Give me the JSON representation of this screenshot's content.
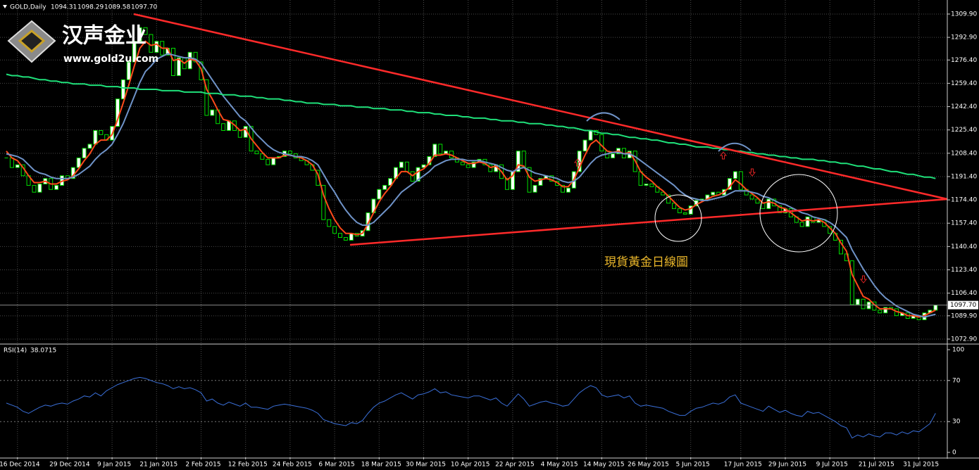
{
  "logo": {
    "name": "汉声金业",
    "url": "www.gold2u.com"
  },
  "chart_data": {
    "type": "candlestick",
    "symbol": "GOLD,Daily",
    "header_ohlc": [
      1094.31,
      1098.29,
      1089.58,
      {
        "value": 1097.7,
        "label": "1097.70"
      }
    ],
    "annotation": "現貨黃金日線圖",
    "categories": [
      null,
      null,
      "16 Dec 2014",
      null,
      null,
      null,
      null,
      null,
      null,
      null,
      null,
      "29 Dec 2014",
      null,
      null,
      null,
      null,
      null,
      null,
      null,
      "9 Jan 2015",
      null,
      null,
      null,
      null,
      null,
      null,
      null,
      "21 Jan 2015",
      null,
      null,
      null,
      null,
      null,
      null,
      null,
      "2 Feb 2015",
      null,
      null,
      null,
      null,
      null,
      null,
      null,
      "12 Feb 2015",
      null,
      null,
      null,
      null,
      null,
      null,
      null,
      "24 Feb 2015",
      null,
      null,
      null,
      null,
      null,
      null,
      null,
      "6 Mar 2015",
      null,
      null,
      null,
      null,
      null,
      null,
      null,
      "18 Mar 2015",
      null,
      null,
      null,
      null,
      null,
      null,
      null,
      "30 Mar 2015",
      null,
      null,
      null,
      null,
      null,
      null,
      null,
      "10 Apr 2015",
      null,
      null,
      null,
      null,
      null,
      null,
      null,
      "22 Apr 2015",
      null,
      null,
      null,
      null,
      null,
      null,
      null,
      "4 May 2015",
      null,
      null,
      null,
      null,
      null,
      null,
      null,
      "14 May 2015",
      null,
      null,
      null,
      null,
      null,
      null,
      null,
      "26 May 2015",
      null,
      null,
      null,
      null,
      null,
      null,
      null,
      "5 Jun 2015",
      null,
      null,
      null,
      null,
      null,
      null,
      null,
      null,
      "17 Jun 2015",
      null,
      null,
      null,
      null,
      null,
      null,
      null,
      "29 Jun 2015",
      null,
      null,
      null,
      null,
      null,
      null,
      null,
      "9 Jul 2015",
      null,
      null,
      null,
      null,
      null,
      null,
      null,
      "21 Jul 2015",
      null,
      null,
      null,
      null,
      null,
      null,
      null,
      "31 Jul 2015",
      null,
      null,
      null
    ],
    "close": [
      1205,
      1198,
      1200,
      1192,
      1185,
      1180,
      1186,
      1190,
      1182,
      1185,
      1192,
      1190,
      1198,
      1205,
      1212,
      1215,
      1225,
      1222,
      1218,
      1228,
      1248,
      1262,
      1275,
      1290,
      1300,
      1295,
      1282,
      1290,
      1280,
      1285,
      1265,
      1278,
      1270,
      1282,
      1275,
      1262,
      1236,
      1240,
      1230,
      1225,
      1232,
      1225,
      1220,
      1228,
      1210,
      1208,
      1204,
      1200,
      1205,
      1206,
      1210,
      1208,
      1205,
      1203,
      1200,
      1196,
      1185,
      1160,
      1155,
      1150,
      1147,
      1145,
      1150,
      1148,
      1152,
      1165,
      1175,
      1182,
      1185,
      1190,
      1198,
      1202,
      1195,
      1188,
      1198,
      1200,
      1206,
      1215,
      1208,
      1210,
      1205,
      1202,
      1200,
      1198,
      1202,
      1204,
      1200,
      1195,
      1200,
      1190,
      1182,
      1195,
      1210,
      1198,
      1180,
      1185,
      1190,
      1192,
      1188,
      1185,
      1180,
      1183,
      1195,
      1210,
      1218,
      1225,
      1222,
      1210,
      1205,
      1208,
      1212,
      1205,
      1210,
      1195,
      1185,
      1186,
      1184,
      1180,
      1178,
      1172,
      1168,
      1165,
      1164,
      1170,
      1174,
      1175,
      1178,
      1180,
      1178,
      1182,
      1190,
      1195,
      1182,
      1178,
      1175,
      1172,
      1168,
      1175,
      1170,
      1165,
      1168,
      1162,
      1158,
      1155,
      1162,
      1158,
      1160,
      1155,
      1150,
      1145,
      1135,
      1130,
      1098,
      1102,
      1095,
      1100,
      1094,
      1092,
      1096,
      1095,
      1090,
      1092,
      1088,
      1090,
      1087,
      1092,
      1094,
      1097.7
    ],
    "candle_colors": {
      "up": "#ffffff",
      "down": "#000000",
      "border": "#00e000"
    },
    "lines": [
      {
        "color": "#ff4a1a",
        "values": [
          1210,
          1205,
          1203,
          1198,
          1192,
          1187,
          1187,
          1188,
          1186,
          1186,
          1188,
          1189,
          1192,
          1197,
          1203,
          1208,
          1215,
          1218,
          1218,
          1222,
          1233,
          1245,
          1258,
          1272,
          1285,
          1290,
          1287,
          1288,
          1285,
          1285,
          1276,
          1277,
          1274,
          1277,
          1276,
          1270,
          1255,
          1248,
          1240,
          1233,
          1232,
          1229,
          1225,
          1226,
          1219,
          1214,
          1209,
          1205,
          1205,
          1205,
          1207,
          1207,
          1206,
          1205,
          1203,
          1200,
          1193,
          1178,
          1168,
          1160,
          1154,
          1150,
          1150,
          1149,
          1150,
          1157,
          1165,
          1173,
          1179,
          1184,
          1190,
          1195,
          1195,
          1192,
          1195,
          1197,
          1201,
          1207,
          1207,
          1208,
          1207,
          1205,
          1203,
          1201,
          1201,
          1202,
          1201,
          1198,
          1199,
          1195,
          1189,
          1192,
          1200,
          1199,
          1191,
          1188,
          1189,
          1190,
          1189,
          1187,
          1184,
          1184,
          1189,
          1198,
          1207,
          1215,
          1218,
          1214,
          1210,
          1209,
          1210,
          1208,
          1209,
          1203,
          1195,
          1191,
          1188,
          1184,
          1181,
          1177,
          1173,
          1169,
          1167,
          1168,
          1171,
          1173,
          1175,
          1177,
          1178,
          1180,
          1184,
          1189,
          1186,
          1182,
          1179,
          1176,
          1172,
          1173,
          1172,
          1169,
          1168,
          1165,
          1162,
          1159,
          1160,
          1159,
          1160,
          1158,
          1154,
          1150,
          1143,
          1137,
          1120,
          1112,
          1104,
          1102,
          1098,
          1095,
          1095,
          1095,
          1093,
          1092,
          1090,
          1090,
          1089,
          1090,
          1092,
          1094
        ]
      },
      {
        "color": "#6f93c8",
        "values": [
          1208,
          1207,
          1206,
          1204,
          1200,
          1196,
          1194,
          1193,
          1191,
          1190,
          1190,
          1190,
          1191,
          1193,
          1196,
          1199,
          1204,
          1208,
          1211,
          1215,
          1222,
          1230,
          1240,
          1250,
          1260,
          1268,
          1272,
          1277,
          1279,
          1281,
          1280,
          1279,
          1278,
          1278,
          1277,
          1274,
          1268,
          1262,
          1256,
          1250,
          1245,
          1240,
          1235,
          1232,
          1227,
          1222,
          1218,
          1214,
          1211,
          1209,
          1208,
          1207,
          1206,
          1206,
          1205,
          1203,
          1200,
          1193,
          1186,
          1180,
          1173,
          1167,
          1162,
          1158,
          1156,
          1156,
          1158,
          1162,
          1166,
          1170,
          1175,
          1180,
          1183,
          1186,
          1189,
          1192,
          1195,
          1199,
          1201,
          1203,
          1204,
          1204,
          1204,
          1203,
          1203,
          1203,
          1202,
          1201,
          1200,
          1198,
          1196,
          1195,
          1197,
          1198,
          1196,
          1194,
          1193,
          1192,
          1191,
          1190,
          1188,
          1187,
          1188,
          1191,
          1196,
          1201,
          1205,
          1207,
          1208,
          1209,
          1209,
          1208,
          1208,
          1206,
          1203,
          1200,
          1197,
          1194,
          1191,
          1188,
          1185,
          1181,
          1178,
          1176,
          1175,
          1174,
          1174,
          1175,
          1176,
          1177,
          1179,
          1181,
          1181,
          1181,
          1180,
          1179,
          1177,
          1176,
          1174,
          1172,
          1171,
          1169,
          1167,
          1165,
          1164,
          1162,
          1161,
          1160,
          1158,
          1155,
          1151,
          1147,
          1138,
          1131,
          1124,
          1118,
          1112,
          1107,
          1103,
          1100,
          1097,
          1095,
          1093,
          1091,
          1090,
          1089,
          1090,
          1091
        ]
      },
      {
        "color": "#1fe07a",
        "values": [
          1266,
          1265,
          1265,
          1264,
          1264,
          1263,
          1262,
          1262,
          1261,
          1261,
          1260,
          1260,
          1259,
          1259,
          1259,
          1258,
          1258,
          1258,
          1257,
          1257,
          1257,
          1256,
          1256,
          1256,
          1255,
          1255,
          1255,
          1255,
          1254,
          1254,
          1254,
          1254,
          1253,
          1253,
          1253,
          1253,
          1252,
          1252,
          1252,
          1251,
          1251,
          1251,
          1250,
          1250,
          1250,
          1249,
          1249,
          1248,
          1248,
          1248,
          1247,
          1247,
          1246,
          1246,
          1245,
          1245,
          1245,
          1244,
          1244,
          1244,
          1243,
          1243,
          1243,
          1242,
          1242,
          1242,
          1241,
          1241,
          1241,
          1240,
          1240,
          1240,
          1239,
          1239,
          1238,
          1238,
          1238,
          1237,
          1237,
          1236,
          1236,
          1236,
          1235,
          1235,
          1234,
          1234,
          1234,
          1233,
          1233,
          1232,
          1232,
          1232,
          1231,
          1231,
          1230,
          1230,
          1230,
          1229,
          1229,
          1228,
          1228,
          1227,
          1227,
          1226,
          1225,
          1225,
          1224,
          1223,
          1223,
          1222,
          1222,
          1221,
          1220,
          1220,
          1219,
          1219,
          1218,
          1218,
          1217,
          1216,
          1216,
          1215,
          1215,
          1214,
          1213,
          1213,
          1213,
          1212,
          1212,
          1211,
          1211,
          1210,
          1210,
          1209,
          1209,
          1208,
          1208,
          1207,
          1207,
          1206,
          1206,
          1205,
          1205,
          1204,
          1204,
          1204,
          1203,
          1203,
          1202,
          1202,
          1201,
          1201,
          1200,
          1199,
          1199,
          1198,
          1197,
          1197,
          1196,
          1195,
          1195,
          1194,
          1193,
          1193,
          1192,
          1191,
          1191,
          1190
        ]
      }
    ],
    "ylim": [
      1069.8,
      1318.6
    ],
    "yticks": [
      {
        "value": 1309.9,
        "label": "1309.90"
      },
      {
        "value": 1292.9,
        "label": "1292.90"
      },
      {
        "value": 1276.4,
        "label": "1276.40"
      },
      {
        "value": 1259.4,
        "label": "1259.40"
      },
      {
        "value": 1242.4,
        "label": "1242.40"
      },
      {
        "value": 1225.4,
        "label": "1225.40"
      },
      {
        "value": 1208.4,
        "label": "1208.40"
      },
      {
        "value": 1191.4,
        "label": "1191.40"
      },
      {
        "value": 1174.4,
        "label": "1174.40"
      },
      {
        "value": 1157.4,
        "label": "1157.40"
      },
      {
        "value": 1140.4,
        "label": "1140.40"
      },
      {
        "value": 1123.4,
        "label": "1123.40"
      },
      {
        "value": 1106.4,
        "label": "1106.40"
      },
      {
        "value": 1089.9,
        "label": "1089.90"
      },
      {
        "value": 1072.9,
        "label": "1072.90"
      }
    ],
    "last_price": {
      "value": 1097.7,
      "label": "1097.70"
    },
    "grid": true,
    "rsi": {
      "label": "RSI(14)",
      "color": "#3a6fd8",
      "ylim": [
        -4.8,
        104.8
      ],
      "yticks": [
        100,
        70,
        30,
        0
      ],
      "levels": [
        70,
        30
      ],
      "values": [
        48,
        46,
        44,
        40,
        38,
        41,
        44,
        46,
        45,
        47,
        48,
        47,
        50,
        52,
        55,
        54,
        58,
        55,
        60,
        63,
        66,
        68,
        70,
        72,
        73,
        72,
        70,
        68,
        67,
        65,
        62,
        64,
        62,
        63,
        61,
        58,
        50,
        52,
        48,
        46,
        49,
        47,
        45,
        48,
        44,
        44,
        43,
        42,
        45,
        46,
        47,
        46,
        45,
        44,
        43,
        41,
        38,
        32,
        30,
        28,
        27,
        26,
        29,
        28,
        31,
        38,
        44,
        48,
        50,
        53,
        56,
        58,
        55,
        52,
        56,
        57,
        59,
        62,
        58,
        59,
        56,
        55,
        54,
        53,
        55,
        55,
        53,
        51,
        53,
        48,
        45,
        51,
        57,
        52,
        45,
        47,
        49,
        50,
        48,
        47,
        45,
        46,
        52,
        58,
        62,
        65,
        63,
        56,
        54,
        55,
        56,
        53,
        55,
        48,
        45,
        46,
        45,
        44,
        43,
        40,
        38,
        36,
        36,
        40,
        43,
        44,
        46,
        48,
        47,
        49,
        54,
        56,
        48,
        46,
        44,
        42,
        40,
        45,
        42,
        39,
        41,
        38,
        36,
        35,
        40,
        38,
        39,
        36,
        33,
        30,
        26,
        24,
        14,
        17,
        15,
        18,
        16,
        15,
        19,
        19,
        17,
        20,
        18,
        21,
        20,
        24,
        28,
        38.0715
      ]
    }
  }
}
